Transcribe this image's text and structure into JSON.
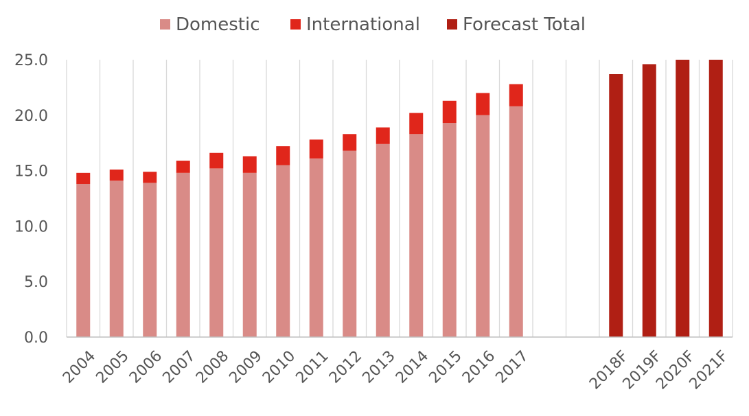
{
  "chart_data": {
    "type": "bar",
    "stacked": true,
    "categories": [
      "2004",
      "2005",
      "2006",
      "2007",
      "2008",
      "2009",
      "2010",
      "2011",
      "2012",
      "2013",
      "2014",
      "2015",
      "2016",
      "2017",
      "",
      "",
      "2018F",
      "2019F",
      "2020F",
      "2021F"
    ],
    "series": [
      {
        "name": "Domestic",
        "color": "#d98b87",
        "values": [
          13.8,
          14.1,
          13.9,
          14.8,
          15.2,
          14.8,
          15.5,
          16.1,
          16.8,
          17.4,
          18.3,
          19.3,
          20.0,
          20.8,
          null,
          null,
          null,
          null,
          null,
          null
        ]
      },
      {
        "name": "International",
        "color": "#e0261b",
        "values": [
          1.0,
          1.0,
          1.0,
          1.1,
          1.4,
          1.5,
          1.7,
          1.7,
          1.5,
          1.5,
          1.9,
          2.0,
          2.0,
          2.0,
          null,
          null,
          null,
          null,
          null,
          null
        ]
      },
      {
        "name": "Forecast Total",
        "color": "#b01f14",
        "values": [
          null,
          null,
          null,
          null,
          null,
          null,
          null,
          null,
          null,
          null,
          null,
          null,
          null,
          null,
          null,
          null,
          23.7,
          24.6,
          25.0,
          25.0
        ]
      }
    ],
    "ylim": [
      0,
      25
    ],
    "yticks": [
      "0.0",
      "5.0",
      "10.0",
      "15.0",
      "20.0",
      "25.0"
    ],
    "grid": "vertical",
    "legend_position": "top-center",
    "title": "",
    "xlabel": "",
    "ylabel": ""
  }
}
